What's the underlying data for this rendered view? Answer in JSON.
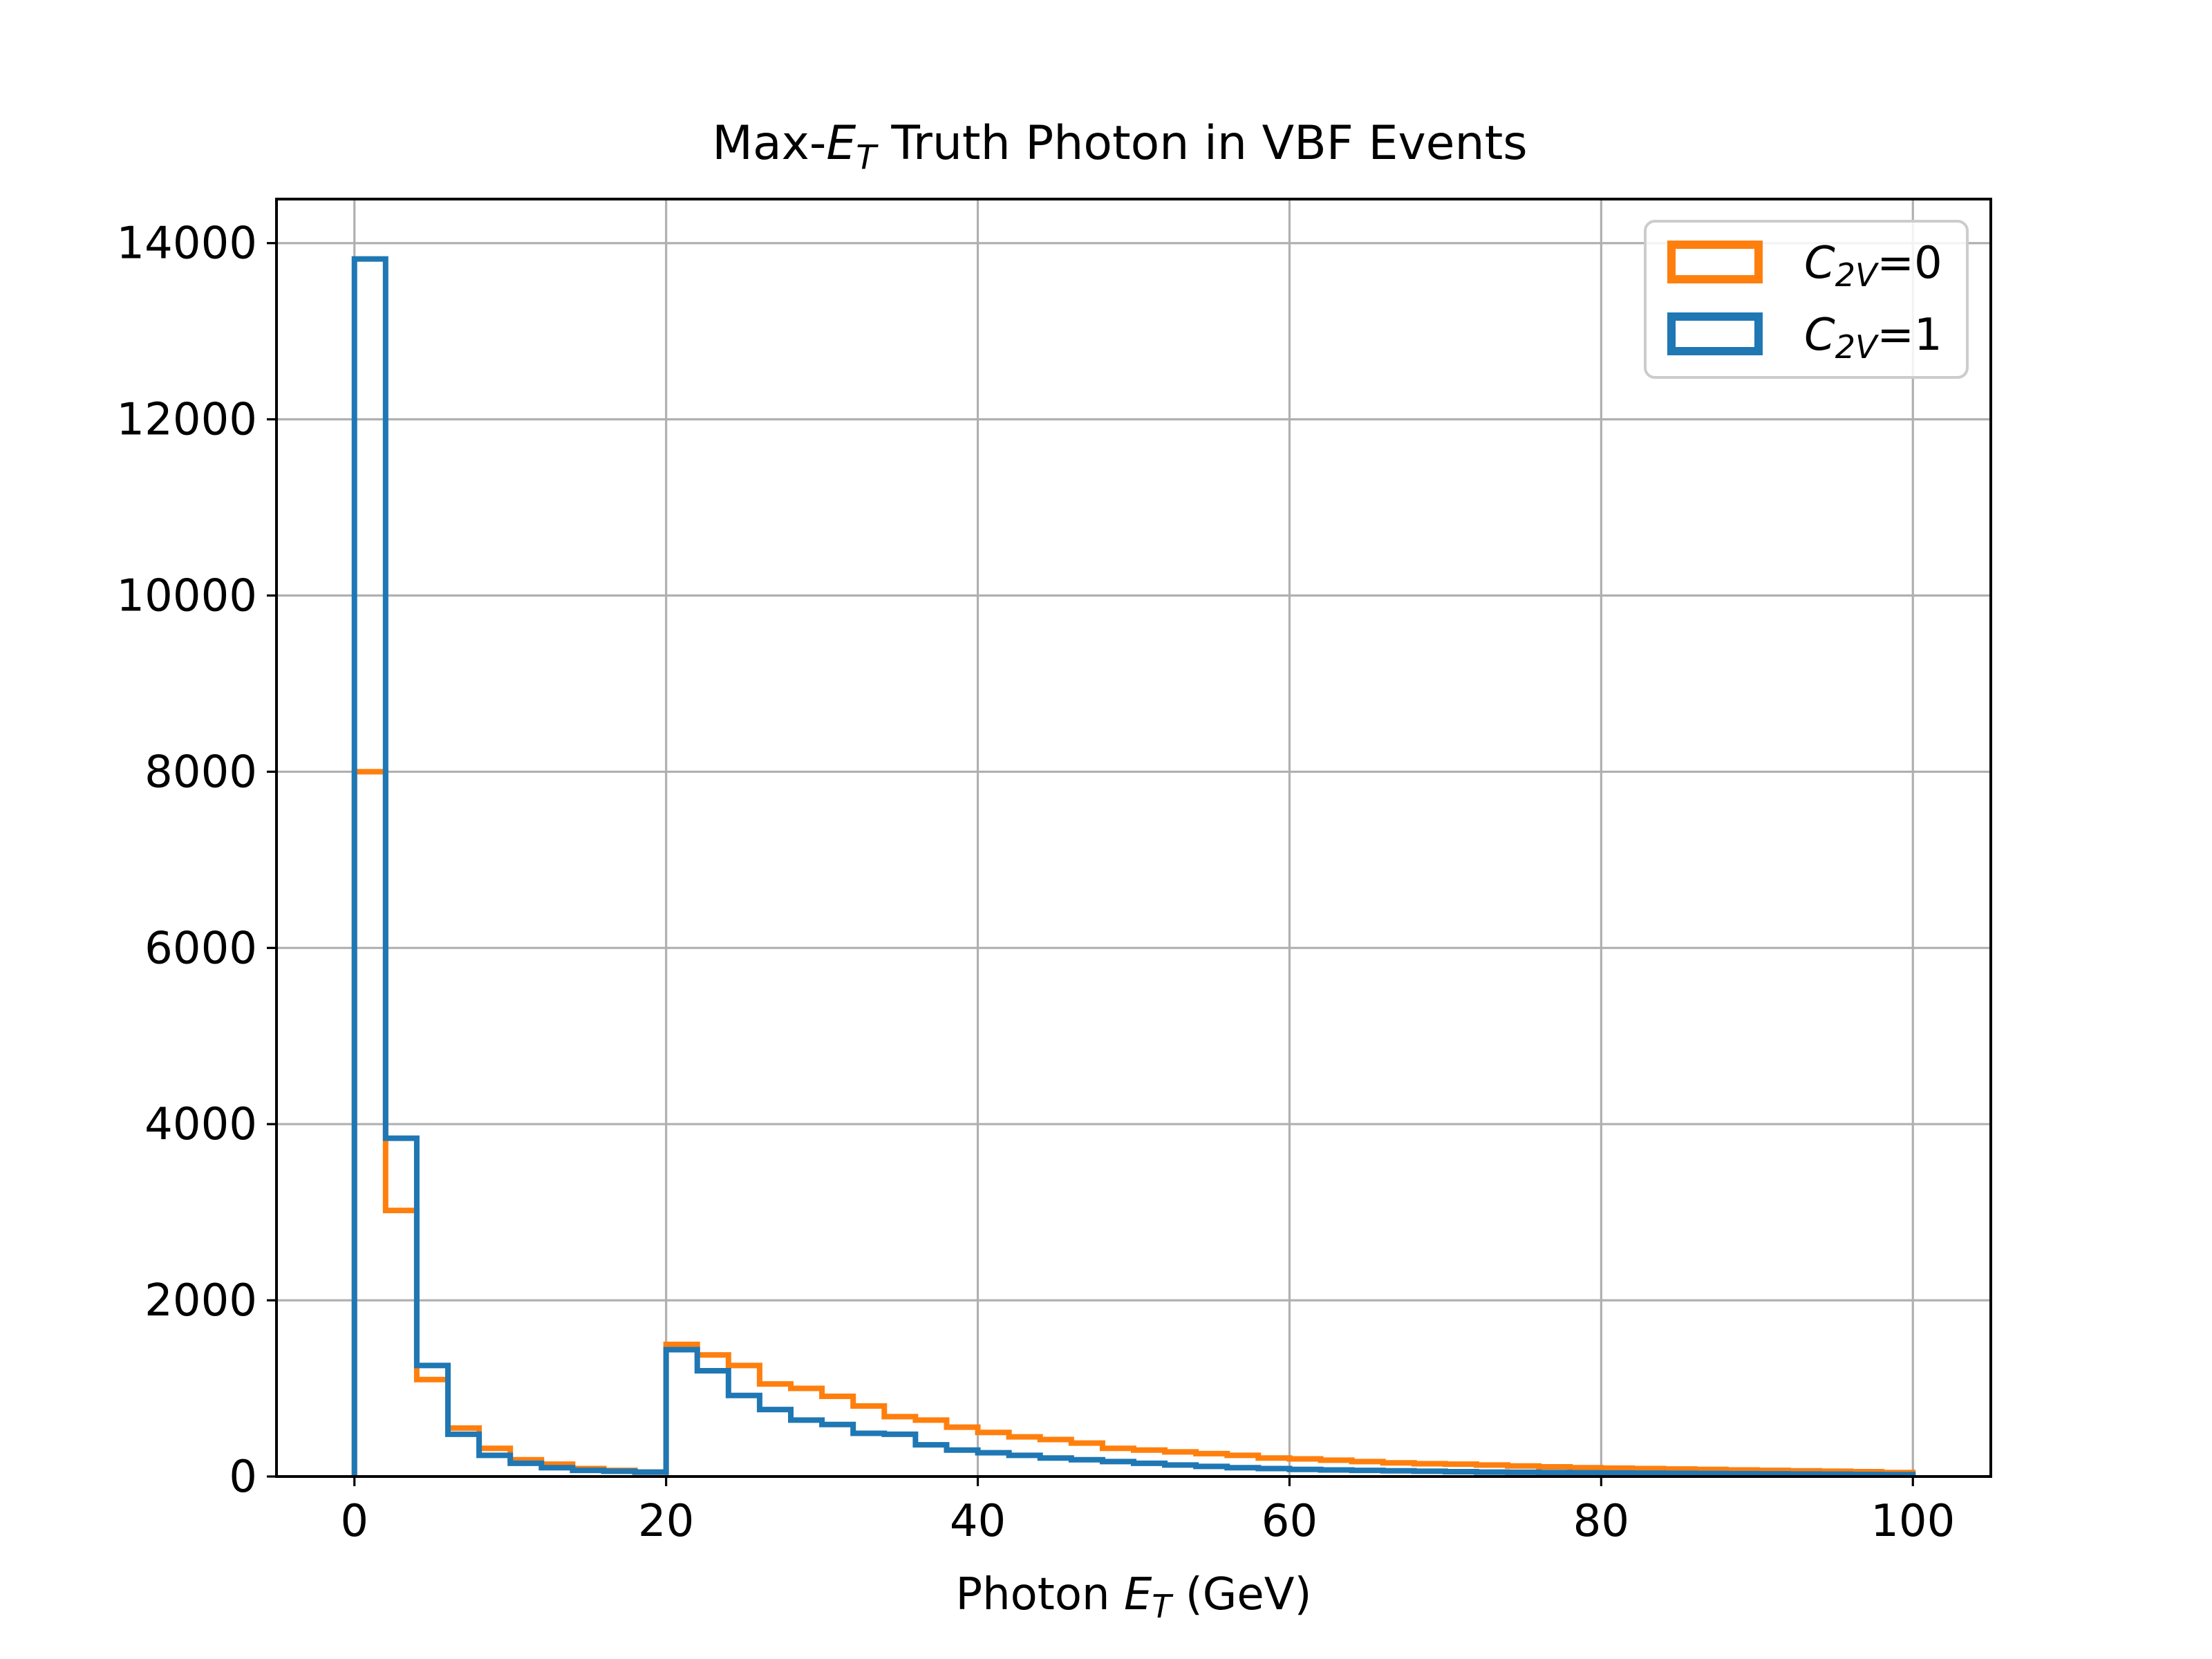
{
  "chart_data": {
    "type": "histogram",
    "title_prefix": "Max-",
    "title_var": "E",
    "title_sub": "T",
    "title_suffix": " Truth Photon in VBF Events",
    "xlabel_prefix": "Photon ",
    "xlabel_var": "E",
    "xlabel_sub": "T",
    "xlabel_suffix": " (GeV)",
    "ylabel": "",
    "xlim": [
      -5,
      105
    ],
    "ylim": [
      0,
      14500
    ],
    "xticks": [
      0,
      20,
      40,
      60,
      80,
      100
    ],
    "yticks": [
      0,
      2000,
      4000,
      6000,
      8000,
      10000,
      12000,
      14000
    ],
    "xtick_labels": [
      "0",
      "20",
      "40",
      "60",
      "80",
      "100"
    ],
    "ytick_labels": [
      "0",
      "2000",
      "4000",
      "6000",
      "8000",
      "10000",
      "12000",
      "14000"
    ],
    "grid": true,
    "legend_position": "top-right",
    "bin_edges": [
      0,
      2,
      4,
      6,
      8,
      10,
      12,
      14,
      16,
      18,
      20,
      22,
      24,
      26,
      28,
      30,
      32,
      34,
      36,
      38,
      40,
      42,
      44,
      46,
      48,
      50,
      52,
      54,
      56,
      58,
      60,
      62,
      64,
      66,
      68,
      70,
      72,
      74,
      76,
      78,
      80,
      82,
      84,
      86,
      88,
      90,
      92,
      94,
      96,
      98,
      100
    ],
    "series": [
      {
        "legend_var": "C",
        "legend_sub": "2V",
        "legend_suffix": "=0",
        "color": "#ff7f0e",
        "values": [
          8000,
          3020,
          1100,
          550,
          320,
          190,
          140,
          90,
          70,
          50,
          1500,
          1380,
          1260,
          1050,
          1000,
          910,
          800,
          680,
          640,
          560,
          500,
          450,
          420,
          380,
          320,
          300,
          280,
          260,
          240,
          210,
          200,
          185,
          170,
          155,
          145,
          140,
          130,
          120,
          110,
          100,
          95,
          90,
          85,
          80,
          75,
          70,
          65,
          60,
          55,
          45
        ]
      },
      {
        "legend_var": "C",
        "legend_sub": "2V",
        "legend_suffix": "=1",
        "color": "#1f77b4",
        "values": [
          13820,
          3840,
          1260,
          480,
          240,
          150,
          100,
          70,
          60,
          50,
          1440,
          1200,
          920,
          760,
          640,
          590,
          490,
          480,
          360,
          300,
          270,
          240,
          210,
          190,
          170,
          150,
          130,
          115,
          100,
          90,
          80,
          75,
          70,
          65,
          60,
          55,
          50,
          48,
          45,
          42,
          40,
          38,
          36,
          34,
          32,
          30,
          28,
          26,
          24,
          22
        ]
      }
    ]
  }
}
